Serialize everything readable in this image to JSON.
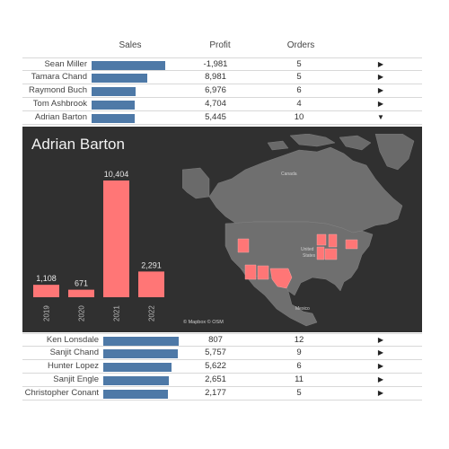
{
  "columns": {
    "sales": "Sales",
    "profit": "Profit",
    "orders": "Orders"
  },
  "colors": {
    "bar": "#4e79a7",
    "highlight": "#ff7676",
    "panel": "#303030",
    "land": "#6f6f6f"
  },
  "top_rows": [
    {
      "name": "Sean Miller",
      "sales_fraction": 0.93,
      "profit": "-1,981",
      "orders": "5",
      "action": "▶"
    },
    {
      "name": "Tamara Chand",
      "sales_fraction": 0.71,
      "profit": "8,981",
      "orders": "5",
      "action": "▶"
    },
    {
      "name": "Raymond Buch",
      "sales_fraction": 0.56,
      "profit": "6,976",
      "orders": "6",
      "action": "▶"
    },
    {
      "name": "Tom Ashbrook",
      "sales_fraction": 0.55,
      "profit": "4,704",
      "orders": "4",
      "action": "▶"
    },
    {
      "name": "Adrian Barton",
      "sales_fraction": 0.54,
      "profit": "5,445",
      "orders": "10",
      "action": "▼"
    }
  ],
  "detail": {
    "title": "Adrian Barton",
    "map_credit": "© Mapbox © OSM",
    "map_labels": {
      "canada": "Canada",
      "us1": "United",
      "us2": "States",
      "mexico": "Mexico"
    }
  },
  "bottom_rows": [
    {
      "name": "Ken Lonsdale",
      "sales_fraction": 0.96,
      "profit": "807",
      "orders": "12",
      "action": "▶"
    },
    {
      "name": "Sanjit Chand",
      "sales_fraction": 0.94,
      "profit": "5,757",
      "orders": "9",
      "action": "▶"
    },
    {
      "name": "Hunter Lopez",
      "sales_fraction": 0.86,
      "profit": "5,622",
      "orders": "6",
      "action": "▶"
    },
    {
      "name": "Sanjit Engle",
      "sales_fraction": 0.83,
      "profit": "2,651",
      "orders": "11",
      "action": "▶"
    },
    {
      "name": "Christopher Conant",
      "sales_fraction": 0.82,
      "profit": "2,177",
      "orders": "5",
      "action": "▶"
    }
  ],
  "chart_data": {
    "type": "bar",
    "title": "Adrian Barton",
    "categories": [
      "2019",
      "2020",
      "2021",
      "2022"
    ],
    "values": [
      1108,
      671,
      10404,
      2291
    ],
    "labels": [
      "1,108",
      "671",
      "10,404",
      "2,291"
    ],
    "ylim": [
      0,
      10404
    ],
    "color": "#ff7676",
    "grid": false
  }
}
